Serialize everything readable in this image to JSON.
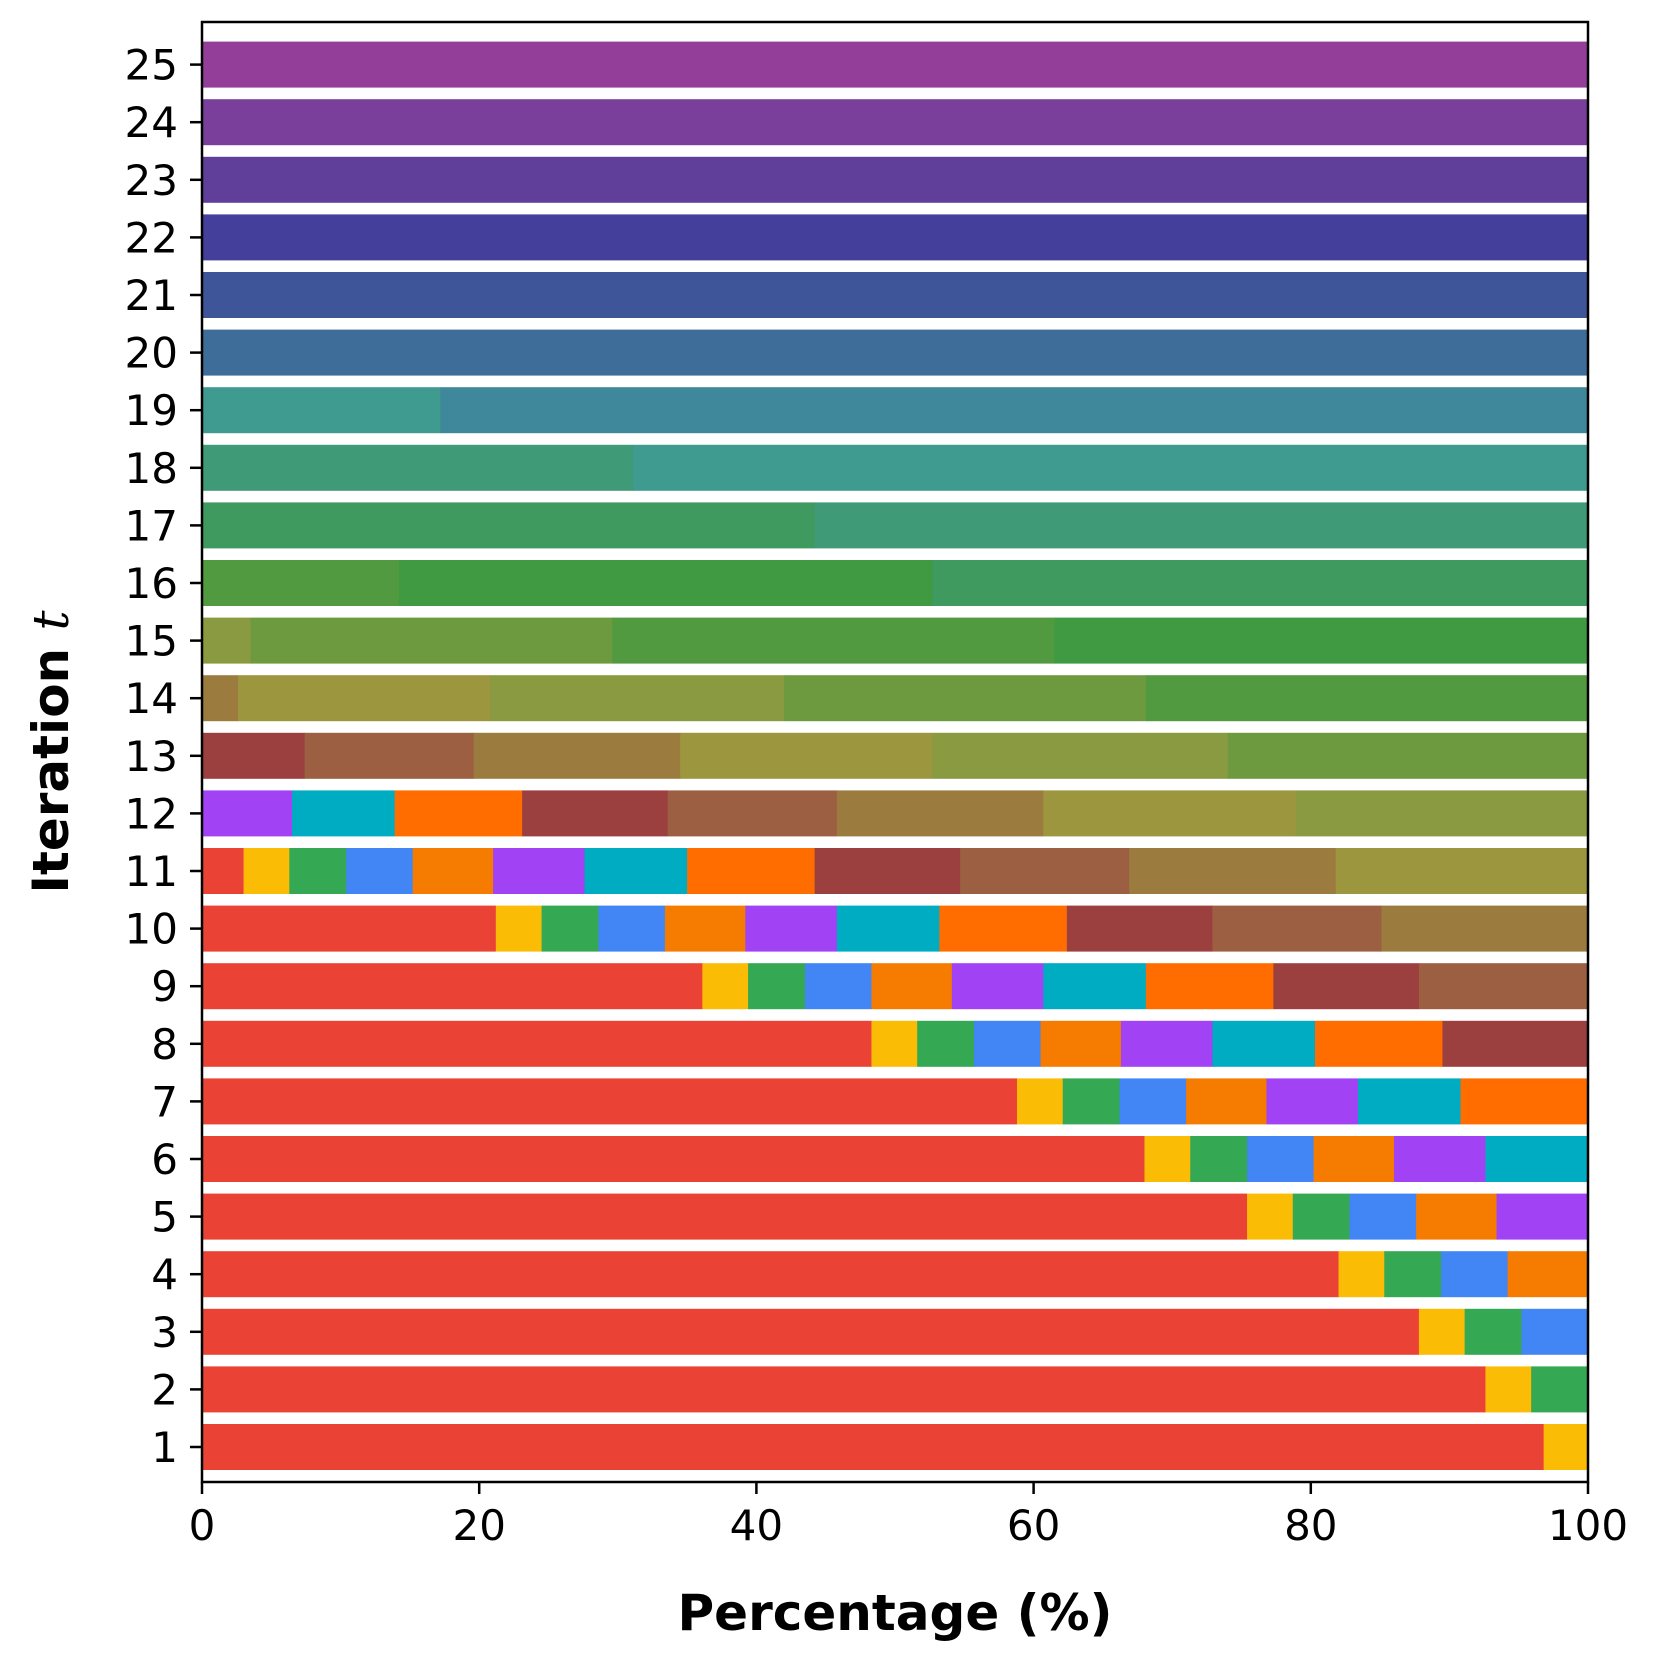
{
  "chart_data": {
    "type": "bar",
    "orientation": "horizontal",
    "stacked": true,
    "title": "",
    "xlabel": "Percentage (%)",
    "ylabel_main": "Iteration",
    "ylabel_var": "t",
    "xlim": [
      0,
      100
    ],
    "xticks": [
      "0",
      "20",
      "40",
      "60",
      "80",
      "100"
    ],
    "grid": false,
    "legend": "none",
    "categories": [
      "1",
      "2",
      "3",
      "4",
      "5",
      "6",
      "7",
      "8",
      "9",
      "10",
      "11",
      "12",
      "13",
      "14",
      "15",
      "16",
      "17",
      "18",
      "19",
      "20",
      "21",
      "22",
      "23",
      "24",
      "25"
    ],
    "rows": [
      {
        "iteration": "1",
        "segments": [
          {
            "v": 96.8,
            "c": "#EA4335"
          },
          {
            "v": 3.2,
            "c": "#FBBC05"
          }
        ]
      },
      {
        "iteration": "2",
        "segments": [
          {
            "v": 92.6,
            "c": "#EA4335"
          },
          {
            "v": 3.3,
            "c": "#FBBC05"
          },
          {
            "v": 4.1,
            "c": "#34A853"
          }
        ]
      },
      {
        "iteration": "3",
        "segments": [
          {
            "v": 87.8,
            "c": "#EA4335"
          },
          {
            "v": 3.3,
            "c": "#FBBC05"
          },
          {
            "v": 4.1,
            "c": "#34A853"
          },
          {
            "v": 4.8,
            "c": "#4285F4"
          }
        ]
      },
      {
        "iteration": "4",
        "segments": [
          {
            "v": 82.0,
            "c": "#EA4335"
          },
          {
            "v": 3.3,
            "c": "#FBBC05"
          },
          {
            "v": 4.1,
            "c": "#34A853"
          },
          {
            "v": 4.8,
            "c": "#4285F4"
          },
          {
            "v": 5.8,
            "c": "#F57C00"
          }
        ]
      },
      {
        "iteration": "5",
        "segments": [
          {
            "v": 75.4,
            "c": "#EA4335"
          },
          {
            "v": 3.3,
            "c": "#FBBC05"
          },
          {
            "v": 4.1,
            "c": "#34A853"
          },
          {
            "v": 4.8,
            "c": "#4285F4"
          },
          {
            "v": 5.8,
            "c": "#F57C00"
          },
          {
            "v": 6.6,
            "c": "#A142F4"
          }
        ]
      },
      {
        "iteration": "6",
        "segments": [
          {
            "v": 68.0,
            "c": "#EA4335"
          },
          {
            "v": 3.3,
            "c": "#FBBC05"
          },
          {
            "v": 4.1,
            "c": "#34A853"
          },
          {
            "v": 4.8,
            "c": "#4285F4"
          },
          {
            "v": 5.8,
            "c": "#F57C00"
          },
          {
            "v": 6.6,
            "c": "#A142F4"
          },
          {
            "v": 7.4,
            "c": "#00ACC1"
          }
        ]
      },
      {
        "iteration": "7",
        "segments": [
          {
            "v": 58.8,
            "c": "#EA4335"
          },
          {
            "v": 3.3,
            "c": "#FBBC05"
          },
          {
            "v": 4.1,
            "c": "#34A853"
          },
          {
            "v": 4.8,
            "c": "#4285F4"
          },
          {
            "v": 5.8,
            "c": "#F57C00"
          },
          {
            "v": 6.6,
            "c": "#A142F4"
          },
          {
            "v": 7.4,
            "c": "#00ACC1"
          },
          {
            "v": 9.2,
            "c": "#FF6D00"
          }
        ]
      },
      {
        "iteration": "8",
        "segments": [
          {
            "v": 48.3,
            "c": "#EA4335"
          },
          {
            "v": 3.3,
            "c": "#FBBC05"
          },
          {
            "v": 4.1,
            "c": "#34A853"
          },
          {
            "v": 4.8,
            "c": "#4285F4"
          },
          {
            "v": 5.8,
            "c": "#F57C00"
          },
          {
            "v": 6.6,
            "c": "#A142F4"
          },
          {
            "v": 7.4,
            "c": "#00ACC1"
          },
          {
            "v": 9.2,
            "c": "#FF6D00"
          },
          {
            "v": 10.5,
            "c": "#9B3F3F"
          }
        ]
      },
      {
        "iteration": "9",
        "segments": [
          {
            "v": 36.1,
            "c": "#EA4335"
          },
          {
            "v": 3.3,
            "c": "#FBBC05"
          },
          {
            "v": 4.1,
            "c": "#34A853"
          },
          {
            "v": 4.8,
            "c": "#4285F4"
          },
          {
            "v": 5.8,
            "c": "#F57C00"
          },
          {
            "v": 6.6,
            "c": "#A142F4"
          },
          {
            "v": 7.4,
            "c": "#00ACC1"
          },
          {
            "v": 9.2,
            "c": "#FF6D00"
          },
          {
            "v": 10.5,
            "c": "#9B3F3F"
          },
          {
            "v": 12.2,
            "c": "#9C5F41"
          }
        ]
      },
      {
        "iteration": "10",
        "segments": [
          {
            "v": 21.2,
            "c": "#EA4335"
          },
          {
            "v": 3.3,
            "c": "#FBBC05"
          },
          {
            "v": 4.1,
            "c": "#34A853"
          },
          {
            "v": 4.8,
            "c": "#4285F4"
          },
          {
            "v": 5.8,
            "c": "#F57C00"
          },
          {
            "v": 6.6,
            "c": "#A142F4"
          },
          {
            "v": 7.4,
            "c": "#00ACC1"
          },
          {
            "v": 9.2,
            "c": "#FF6D00"
          },
          {
            "v": 10.5,
            "c": "#9B3F3F"
          },
          {
            "v": 12.2,
            "c": "#9C5F41"
          },
          {
            "v": 14.9,
            "c": "#9C7B3F"
          }
        ]
      },
      {
        "iteration": "11",
        "segments": [
          {
            "v": 3.0,
            "c": "#EA4335"
          },
          {
            "v": 3.3,
            "c": "#FBBC05"
          },
          {
            "v": 4.1,
            "c": "#34A853"
          },
          {
            "v": 4.8,
            "c": "#4285F4"
          },
          {
            "v": 5.8,
            "c": "#F57C00"
          },
          {
            "v": 6.6,
            "c": "#A142F4"
          },
          {
            "v": 7.4,
            "c": "#00ACC1"
          },
          {
            "v": 9.2,
            "c": "#FF6D00"
          },
          {
            "v": 10.5,
            "c": "#9B3F3F"
          },
          {
            "v": 12.2,
            "c": "#9C5F41"
          },
          {
            "v": 14.9,
            "c": "#9C7B3F"
          },
          {
            "v": 18.2,
            "c": "#9C963F"
          }
        ]
      },
      {
        "iteration": "12",
        "segments": [
          {
            "v": 6.5,
            "c": "#A142F4"
          },
          {
            "v": 7.4,
            "c": "#00ACC1"
          },
          {
            "v": 9.2,
            "c": "#FF6D00"
          },
          {
            "v": 10.5,
            "c": "#9B3F3F"
          },
          {
            "v": 12.2,
            "c": "#9C5F41"
          },
          {
            "v": 14.9,
            "c": "#9C7B3F"
          },
          {
            "v": 18.2,
            "c": "#9C963F"
          },
          {
            "v": 21.1,
            "c": "#8A9A40"
          }
        ]
      },
      {
        "iteration": "13",
        "segments": [
          {
            "v": 7.4,
            "c": "#9B3F3F"
          },
          {
            "v": 12.2,
            "c": "#9C5F41"
          },
          {
            "v": 14.9,
            "c": "#9C7B3F"
          },
          {
            "v": 18.2,
            "c": "#9C963F"
          },
          {
            "v": 21.3,
            "c": "#8A9A40"
          },
          {
            "v": 26.0,
            "c": "#6E9A3F"
          }
        ]
      },
      {
        "iteration": "14",
        "segments": [
          {
            "v": 2.6,
            "c": "#9C7B3F"
          },
          {
            "v": 18.2,
            "c": "#9C963F"
          },
          {
            "v": 21.2,
            "c": "#8A9A40"
          },
          {
            "v": 26.1,
            "c": "#6E9A3F"
          },
          {
            "v": 31.9,
            "c": "#529A3F"
          }
        ]
      },
      {
        "iteration": "15",
        "segments": [
          {
            "v": 3.5,
            "c": "#8A9A40"
          },
          {
            "v": 26.1,
            "c": "#6E9A3F"
          },
          {
            "v": 31.9,
            "c": "#529A3F"
          },
          {
            "v": 38.5,
            "c": "#3F9A41"
          }
        ]
      },
      {
        "iteration": "16",
        "segments": [
          {
            "v": 14.2,
            "c": "#529A3F"
          },
          {
            "v": 38.5,
            "c": "#3F9A41"
          },
          {
            "v": 47.3,
            "c": "#3F9A5F"
          }
        ]
      },
      {
        "iteration": "17",
        "segments": [
          {
            "v": 44.2,
            "c": "#3F9A5F"
          },
          {
            "v": 55.8,
            "c": "#3F9A77"
          }
        ]
      },
      {
        "iteration": "18",
        "segments": [
          {
            "v": 31.1,
            "c": "#3F9A77"
          },
          {
            "v": 68.9,
            "c": "#3F9A8F"
          }
        ]
      },
      {
        "iteration": "19",
        "segments": [
          {
            "v": 17.2,
            "c": "#3F9A8F"
          },
          {
            "v": 82.8,
            "c": "#3F879A"
          }
        ]
      },
      {
        "iteration": "20",
        "segments": [
          {
            "v": 100,
            "c": "#3F6D9A"
          }
        ]
      },
      {
        "iteration": "21",
        "segments": [
          {
            "v": 100,
            "c": "#3F559A"
          }
        ]
      },
      {
        "iteration": "22",
        "segments": [
          {
            "v": 100,
            "c": "#433F9A"
          }
        ]
      },
      {
        "iteration": "23",
        "segments": [
          {
            "v": 100,
            "c": "#5F3F9A"
          }
        ]
      },
      {
        "iteration": "24",
        "segments": [
          {
            "v": 100,
            "c": "#793F9A"
          }
        ]
      },
      {
        "iteration": "25",
        "segments": [
          {
            "v": 100,
            "c": "#933F9A"
          }
        ]
      }
    ]
  }
}
